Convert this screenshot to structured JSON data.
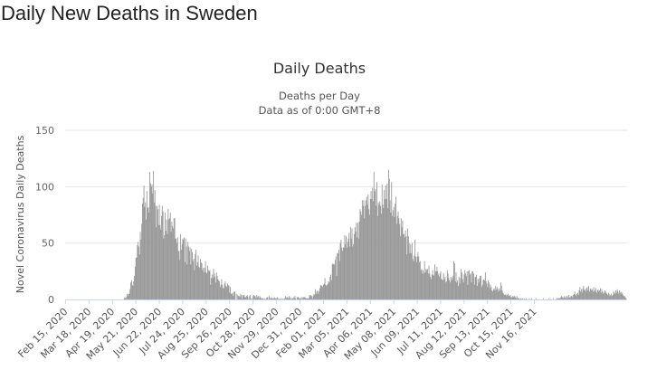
{
  "page": {
    "title": "Daily New Deaths in Sweden"
  },
  "chart_data": {
    "type": "bar",
    "title": "Daily Deaths",
    "subtitle": [
      "Deaths per Day",
      "Data as of 0:00 GMT+8"
    ],
    "ylabel": "Novel Coronavirus Daily Deaths",
    "ylim": [
      0,
      150
    ],
    "yticks": [
      0,
      50,
      100,
      150
    ],
    "grid": true,
    "legend": "none",
    "colors": {
      "bar": "#999999",
      "grid": "#e6e6e6",
      "axis": "#ccd6eb"
    },
    "x_tick_labels": [
      "Feb 15, 2020",
      "Mar 18, 2020",
      "Apr 19, 2020",
      "May 21, 2020",
      "Jun 22, 2020",
      "Jul 24, 2020",
      "Aug 25, 2020",
      "Sep 26, 2020",
      "Oct 28, 2020",
      "Nov 29, 2020",
      "Dec 31, 2020",
      "Feb 01, 2021",
      "Mar 05, 2021",
      "Apr 06, 2021",
      "May 08, 2021",
      "Jun 09, 2021",
      "Jul 11, 2021",
      "Aug 12, 2021",
      "Sep 13, 2021",
      "Oct 15, 2021",
      "Nov 16, 2021"
    ],
    "x_start": "Feb 15, 2020",
    "x_end": "Nov 28, 2021",
    "series": [
      {
        "values": [
          0,
          0,
          0,
          0,
          0,
          0,
          0,
          0,
          0,
          0,
          0,
          0,
          0,
          0,
          0,
          0,
          0,
          0,
          0,
          0,
          0,
          0,
          0,
          0,
          0,
          0,
          0,
          0,
          0,
          0,
          0,
          0,
          0,
          0,
          0,
          0,
          0,
          0,
          0,
          0,
          0,
          0,
          0,
          0,
          0,
          0,
          0,
          0,
          0,
          0,
          0,
          0,
          0,
          0,
          0,
          0,
          0,
          0,
          0,
          0,
          0,
          0,
          0,
          0,
          0,
          0,
          0,
          0,
          0,
          0,
          0,
          0,
          0,
          0,
          0,
          0,
          0,
          0,
          0,
          0,
          1,
          2,
          1,
          2,
          5,
          3,
          5,
          5,
          9,
          15,
          17,
          13,
          12,
          16,
          21,
          29,
          37,
          37,
          48,
          51,
          47,
          40,
          60,
          53,
          67,
          85,
          90,
          101,
          82,
          86,
          71,
          96,
          81,
          82,
          77,
          113,
          103,
          100,
          102,
          94,
          114,
          86,
          97,
          83,
          64,
          83,
          80,
          66,
          84,
          66,
          62,
          74,
          83,
          78,
          54,
          57,
          77,
          61,
          71,
          58,
          80,
          71,
          72,
          77,
          60,
          69,
          65,
          63,
          72,
          72,
          54,
          54,
          50,
          55,
          43,
          43,
          35,
          58,
          44,
          49,
          54,
          53,
          55,
          33,
          54,
          47,
          31,
          51,
          47,
          43,
          46,
          31,
          45,
          42,
          34,
          36,
          26,
          40,
          44,
          30,
          33,
          39,
          29,
          28,
          36,
          33,
          32,
          26,
          28,
          24,
          28,
          34,
          24,
          23,
          30,
          26,
          25,
          26,
          13,
          19,
          22,
          19,
          27,
          23,
          20,
          15,
          24,
          21,
          18,
          17,
          16,
          11,
          13,
          18,
          13,
          10,
          10,
          14,
          16,
          12,
          11,
          14,
          13,
          12,
          6,
          11,
          5,
          5,
          6,
          3,
          7,
          7,
          0,
          5,
          0,
          4,
          3,
          3,
          2,
          5,
          4,
          1,
          4,
          3,
          4,
          2,
          2,
          3,
          4,
          2,
          0,
          3,
          4,
          1,
          0,
          1,
          3,
          4,
          3,
          3,
          1,
          4,
          2,
          3,
          1,
          3,
          2,
          1,
          1,
          1,
          1,
          0,
          1,
          0,
          1,
          2,
          2,
          0,
          3,
          1,
          1,
          2,
          1,
          1,
          1,
          2,
          1,
          1,
          1,
          2,
          1,
          0,
          0,
          1,
          0,
          1,
          0,
          1,
          0,
          1,
          3,
          1,
          2,
          2,
          1,
          3,
          1,
          2,
          0,
          1,
          1,
          2,
          1,
          3,
          1,
          0,
          2,
          2,
          2,
          1,
          1,
          1,
          2,
          0,
          2,
          2,
          2,
          2,
          1,
          1,
          1,
          1,
          1,
          4,
          3,
          4,
          3,
          1,
          3,
          5,
          4,
          9,
          5,
          7,
          8,
          5,
          7,
          10,
          13,
          12,
          12,
          11,
          13,
          14,
          19,
          13,
          12,
          13,
          14,
          16,
          15,
          20,
          22,
          17,
          31,
          32,
          31,
          31,
          35,
          38,
          21,
          41,
          41,
          44,
          34,
          50,
          53,
          46,
          43,
          46,
          46,
          57,
          49,
          56,
          46,
          51,
          54,
          59,
          47,
          64,
          54,
          63,
          47,
          49,
          58,
          64,
          60,
          68,
          55,
          68,
          54,
          69,
          80,
          78,
          75,
          88,
          83,
          88,
          72,
          83,
          88,
          91,
          84,
          93,
          80,
          75,
          89,
          96,
          89,
          99,
          87,
          113,
          96,
          98,
          83,
          104,
          74,
          86,
          84,
          87,
          83,
          76,
          102,
          84,
          81,
          97,
          89,
          101,
          89,
          103,
          81,
          115,
          107,
          88,
          77,
          104,
          74,
          79,
          82,
          73,
          85,
          91,
          67,
          74,
          78,
          72,
          67,
          56,
          72,
          64,
          70,
          58,
          58,
          55,
          61,
          56,
          40,
          63,
          56,
          50,
          41,
          49,
          41,
          50,
          36,
          34,
          39,
          53,
          38,
          33,
          38,
          42,
          38,
          33,
          34,
          26,
          27,
          23,
          26,
          23,
          34,
          24,
          27,
          26,
          27,
          23,
          30,
          23,
          20,
          18,
          22,
          26,
          22,
          21,
          31,
          25,
          25,
          29,
          25,
          22,
          20,
          23,
          25,
          18,
          18,
          17,
          23,
          18,
          20,
          15,
          16,
          26,
          23,
          19,
          17,
          15,
          20,
          17,
          19,
          21,
          34,
          32,
          16,
          24,
          15,
          17,
          12,
          20,
          14,
          19,
          27,
          24,
          18,
          15,
          22,
          26,
          23,
          21,
          25,
          13,
          25,
          26,
          22,
          23,
          15,
          25,
          25,
          23,
          13,
          20,
          20,
          22,
          12,
          18,
          15,
          19,
          21,
          21,
          11,
          13,
          17,
          18,
          17,
          24,
          16,
          14,
          11,
          17,
          15,
          10,
          13,
          11,
          8,
          7,
          9,
          10,
          8,
          12,
          9,
          11,
          9,
          7,
          10,
          8,
          15,
          12,
          8,
          6,
          5,
          4,
          4,
          5,
          3,
          4,
          5,
          3,
          3,
          4,
          2,
          2,
          3,
          2,
          3,
          3,
          2,
          1,
          3,
          1,
          1,
          1,
          0,
          1,
          1,
          0,
          1,
          0,
          1,
          0,
          0,
          1,
          0,
          0,
          0,
          1,
          0,
          0,
          1,
          0,
          0,
          0,
          0,
          0,
          1,
          0,
          0,
          0,
          0,
          0,
          0,
          0,
          0,
          0,
          1,
          0,
          0,
          0,
          0,
          0,
          0,
          0,
          1,
          0,
          0,
          0,
          0,
          0,
          1,
          0,
          0,
          0,
          1,
          1,
          1,
          1,
          1,
          1,
          2,
          3,
          2,
          2,
          1,
          3,
          2,
          1,
          3,
          3,
          1,
          4,
          2,
          2,
          3,
          3,
          2,
          4,
          5,
          7,
          4,
          3,
          5,
          6,
          4,
          8,
          11,
          7,
          9,
          6,
          10,
          12,
          8,
          9,
          7,
          10,
          11,
          8,
          12,
          7,
          9,
          10,
          8,
          9,
          7,
          11,
          8,
          7,
          10,
          6,
          8,
          9,
          7,
          8,
          10,
          6,
          9,
          7,
          5,
          6,
          8,
          7,
          6,
          5,
          4,
          6,
          5,
          3,
          4,
          5,
          3,
          4,
          7,
          6,
          5,
          8,
          6,
          9,
          7,
          5,
          8,
          6,
          7,
          5,
          6,
          4,
          3,
          3,
          2,
          1,
          0
        ]
      }
    ]
  }
}
